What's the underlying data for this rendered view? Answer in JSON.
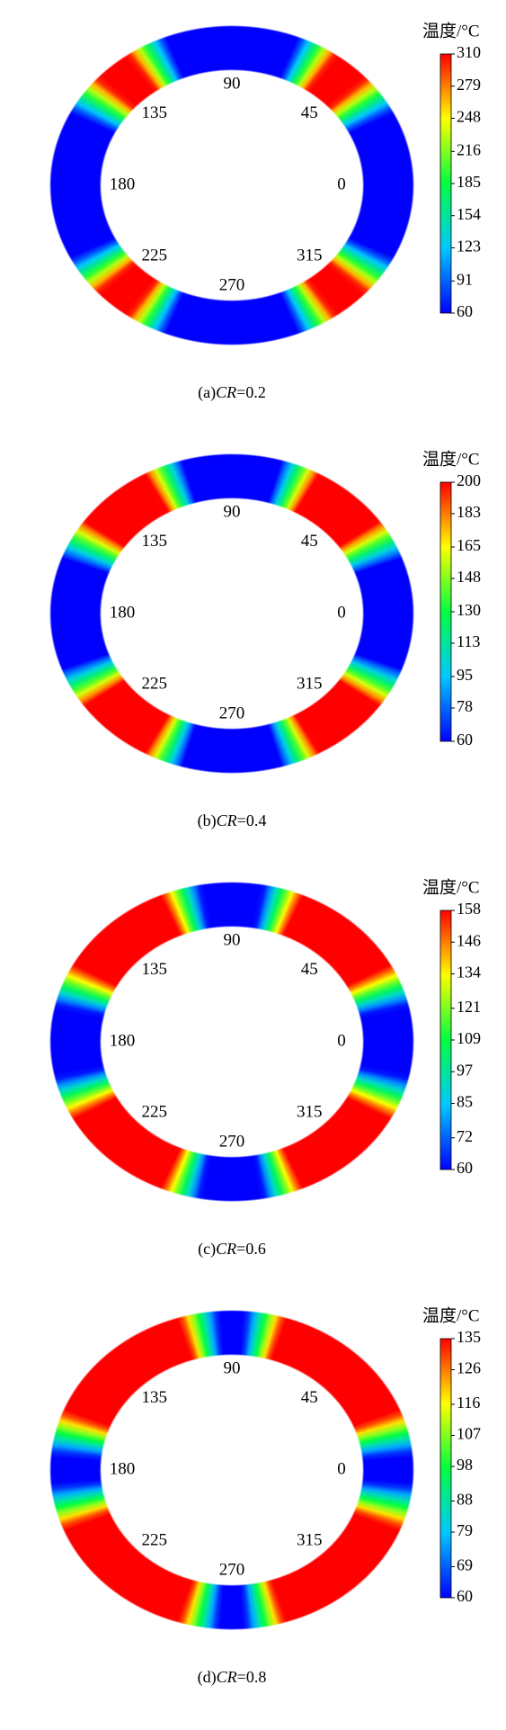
{
  "chart_data": [
    {
      "type": "contour",
      "colorbar_title": "温度/°C",
      "clim": [
        60,
        310
      ],
      "cticks": [
        60,
        91,
        123,
        154,
        185,
        216,
        248,
        279,
        310
      ],
      "colormap": [
        "#0000ff",
        "#00c8ff",
        "#00ff40",
        "#ffff00",
        "#ff0000"
      ],
      "angle_labels": [
        90,
        45,
        0,
        315,
        270,
        225,
        180,
        135
      ],
      "caption": {
        "label": "(a)",
        "var": "CR",
        "sep": "=",
        "value": 0.2
      }
    },
    {
      "type": "contour",
      "colorbar_title": "温度/°C",
      "clim": [
        60,
        200
      ],
      "cticks": [
        60,
        78,
        95,
        113,
        130,
        148,
        165,
        183,
        200
      ],
      "colormap": [
        "#0000ff",
        "#00c8ff",
        "#00ff40",
        "#ffff00",
        "#ff0000"
      ],
      "angle_labels": [
        90,
        45,
        0,
        315,
        270,
        225,
        180,
        135
      ],
      "caption": {
        "label": "(b)",
        "var": "CR",
        "sep": "=",
        "value": 0.4
      }
    },
    {
      "type": "contour",
      "colorbar_title": "温度/°C",
      "clim": [
        60,
        158
      ],
      "cticks": [
        60,
        72,
        85,
        97,
        109,
        121,
        134,
        146,
        158
      ],
      "colormap": [
        "#0000ff",
        "#00c8ff",
        "#00ff40",
        "#ffff00",
        "#ff0000"
      ],
      "angle_labels": [
        90,
        45,
        0,
        315,
        270,
        225,
        180,
        135
      ],
      "caption": {
        "label": "(c)",
        "var": "CR",
        "sep": "=",
        "value": 0.6
      }
    },
    {
      "type": "contour",
      "colorbar_title": "温度/°C",
      "clim": [
        60,
        135
      ],
      "cticks": [
        60,
        69,
        79,
        88,
        98,
        107,
        116,
        126,
        135
      ],
      "colormap": [
        "#0000ff",
        "#00c8ff",
        "#00ff40",
        "#ffff00",
        "#ff0000"
      ],
      "angle_labels": [
        90,
        45,
        0,
        315,
        270,
        225,
        180,
        135
      ],
      "caption": {
        "label": "(d)",
        "var": "CR",
        "sep": "=",
        "value": 0.8
      }
    }
  ]
}
